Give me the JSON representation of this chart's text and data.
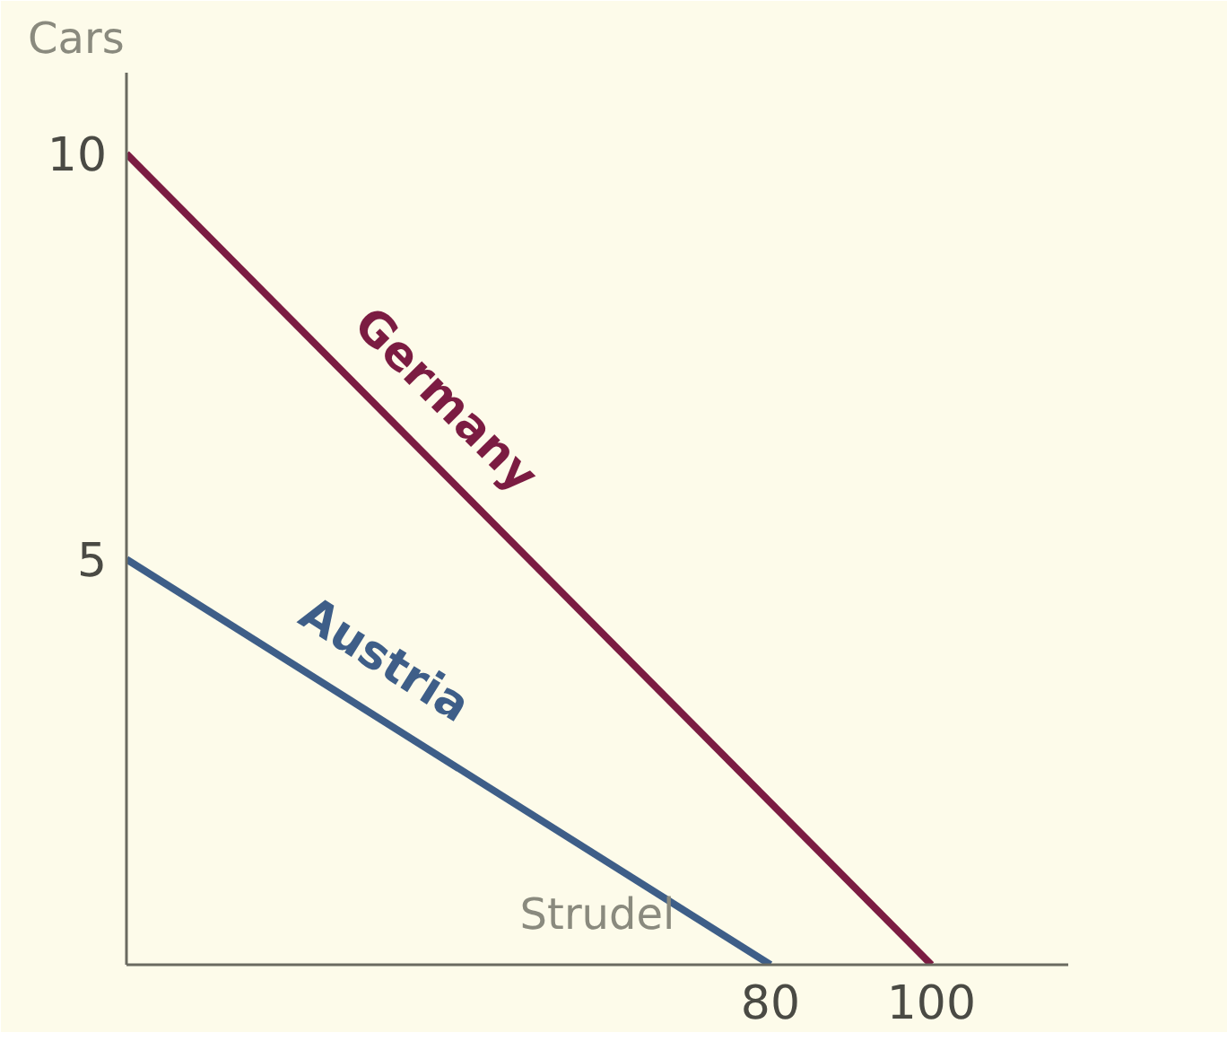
{
  "chart_data": {
    "type": "line",
    "xlabel": "Strudel",
    "ylabel": "Cars",
    "xlim": [
      0,
      117
    ],
    "ylim": [
      0,
      11
    ],
    "xticks": [
      80,
      100
    ],
    "yticks": [
      5,
      10
    ],
    "grid": false,
    "legend": false,
    "marker": "none",
    "line_style": "solid",
    "series": [
      {
        "name": "Germany",
        "color": "#7b1c42",
        "x": [
          0,
          100
        ],
        "values": [
          10,
          0
        ]
      },
      {
        "name": "Austria",
        "color": "#3e5e88",
        "x": [
          0,
          80
        ],
        "values": [
          5,
          0
        ]
      }
    ]
  }
}
